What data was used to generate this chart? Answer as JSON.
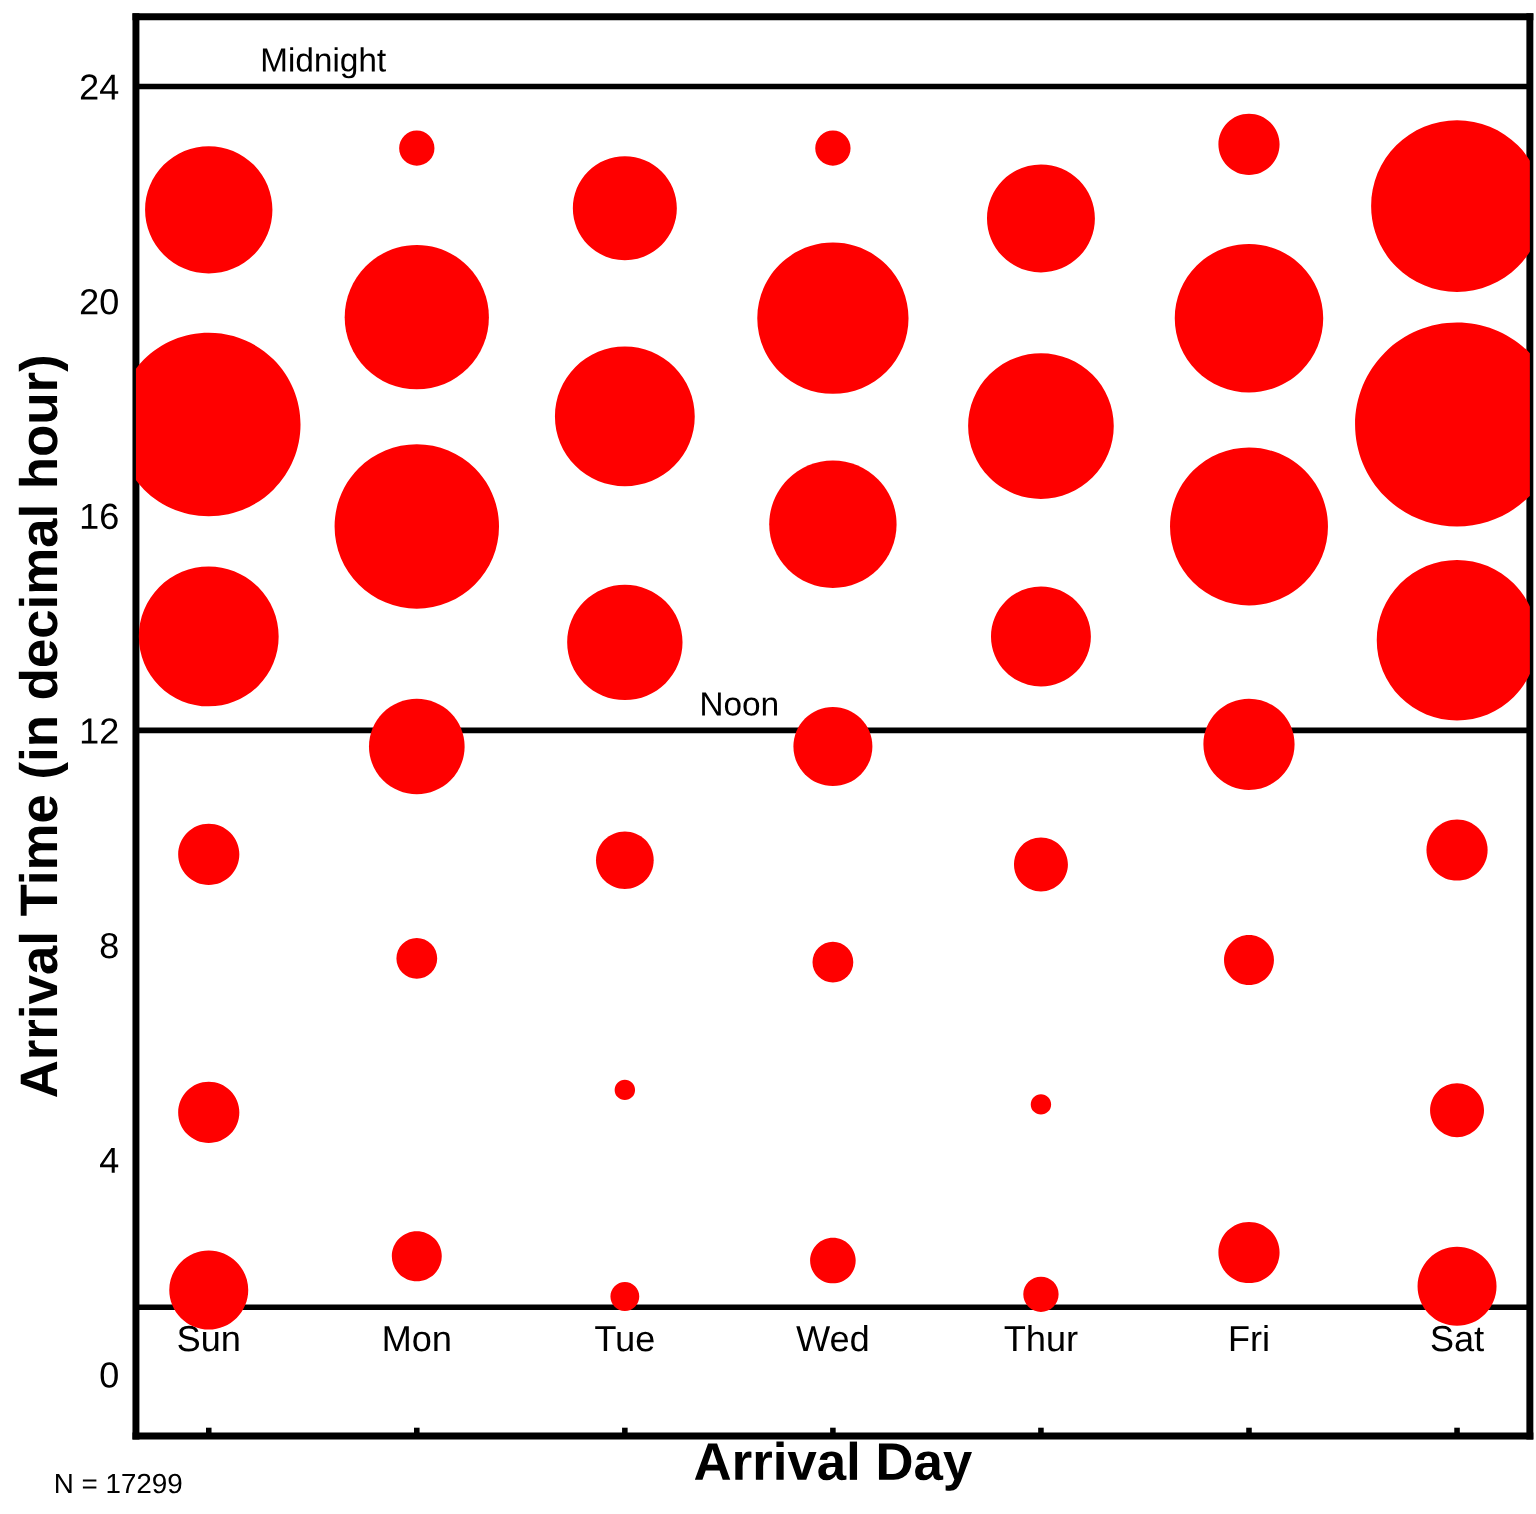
{
  "chart_data": {
    "type": "bubble",
    "xlabel": "Arrival Day",
    "ylabel": "Arrival Time (in decimal hour)",
    "categories": [
      "Sun",
      "Mon",
      "Tue",
      "Wed",
      "Thur",
      "Fri",
      "Sat"
    ],
    "ylim": [
      -1.15,
      25.3
    ],
    "yticks": [
      0,
      4,
      8,
      12,
      16,
      20,
      24
    ],
    "grid": false,
    "legend": false,
    "series": [
      {
        "color": "#ff0000",
        "values": [
          1.57,
          2.2,
          1.45,
          2.12,
          1.49,
          2.27,
          1.64
        ],
        "sizes": [
          0.15,
          0.06,
          0.02,
          0.05,
          0.03,
          0.09,
          0.15
        ]
      },
      {
        "color": "#ff0000",
        "values": [
          4.88,
          7.75,
          5.3,
          7.68,
          5.03,
          7.72,
          4.92
        ],
        "sizes": [
          0.09,
          0.04,
          0.01,
          0.04,
          0.01,
          0.06,
          0.07
        ]
      },
      {
        "color": "#ff0000",
        "values": [
          9.69,
          11.7,
          9.58,
          11.7,
          9.5,
          11.74,
          9.77
        ],
        "sizes": [
          0.09,
          0.22,
          0.08,
          0.15,
          0.07,
          0.2,
          0.09
        ]
      },
      {
        "color": "#ff0000",
        "values": [
          13.75,
          15.8,
          13.64,
          15.84,
          13.75,
          15.8,
          13.68
        ],
        "sizes": [
          0.47,
          0.65,
          0.32,
          0.39,
          0.24,
          0.6,
          0.62
        ]
      },
      {
        "color": "#ff0000",
        "values": [
          17.7,
          19.7,
          17.85,
          19.68,
          17.67,
          19.68,
          17.7
        ],
        "sizes": [
          0.81,
          0.5,
          0.47,
          0.55,
          0.51,
          0.53,
          1
        ]
      },
      {
        "color": "#ff0000",
        "values": [
          21.7,
          22.85,
          21.73,
          22.85,
          21.54,
          22.92,
          21.77
        ],
        "sizes": [
          0.39,
          0.03,
          0.26,
          0.03,
          0.28,
          0.09,
          0.71
        ]
      }
    ],
    "ref_lines": [
      {
        "axis": "y",
        "value": 24,
        "label": "Midnight",
        "color": "#000000"
      },
      {
        "axis": "y",
        "value": 12,
        "label": "Noon",
        "color": "#000000"
      },
      {
        "axis": "y",
        "value": 1.25,
        "label": null,
        "color": "#000000"
      }
    ],
    "annotations": [
      "N = 17299"
    ]
  }
}
